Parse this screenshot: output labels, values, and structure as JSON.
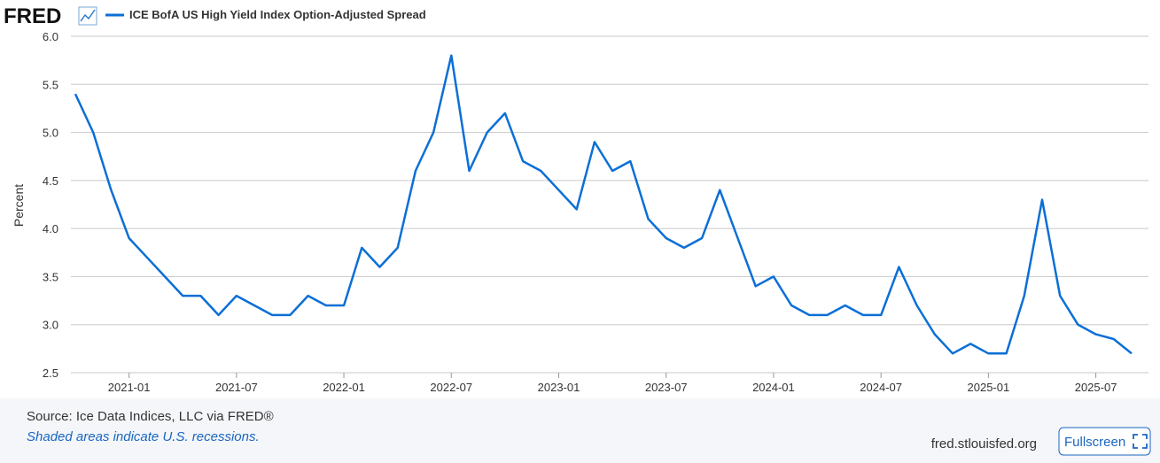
{
  "chart_data": {
    "type": "line",
    "logo": "FRED",
    "ylabel": "Percent",
    "source": "Source: Ice Data Indices, LLC via FRED®",
    "note": "Shaded areas indicate U.S. recessions.",
    "site": "fred.stlouisfed.org",
    "button": "Fullscreen",
    "grid": true,
    "x": [
      "2020-10",
      "2020-11",
      "2020-12",
      "2021-01",
      "2021-02",
      "2021-03",
      "2021-04",
      "2021-05",
      "2021-06",
      "2021-07",
      "2021-08",
      "2021-09",
      "2021-10",
      "2021-11",
      "2021-12",
      "2022-01",
      "2022-02",
      "2022-03",
      "2022-04",
      "2022-05",
      "2022-06",
      "2022-07",
      "2022-08",
      "2022-09",
      "2022-10",
      "2022-11",
      "2022-12",
      "2023-01",
      "2023-02",
      "2023-03",
      "2023-04",
      "2023-05",
      "2023-06",
      "2023-07",
      "2023-08",
      "2023-09",
      "2023-10",
      "2023-11",
      "2023-12",
      "2024-01",
      "2024-02",
      "2024-03",
      "2024-04",
      "2024-05",
      "2024-06",
      "2024-07",
      "2024-08",
      "2024-09",
      "2024-10",
      "2024-11",
      "2024-12",
      "2025-01",
      "2025-02",
      "2025-03",
      "2025-04",
      "2025-05",
      "2025-06",
      "2025-07",
      "2025-08",
      "2025-09"
    ],
    "series": [
      {
        "name": "ICE BofA US High Yield Index Option-Adjusted Spread",
        "color": "#0b6fd6",
        "values": [
          5.4,
          5.0,
          4.4,
          3.9,
          3.7,
          3.5,
          3.3,
          3.3,
          3.1,
          3.3,
          3.2,
          3.1,
          3.1,
          3.3,
          3.2,
          3.2,
          3.8,
          3.6,
          3.8,
          4.6,
          5.0,
          5.8,
          4.6,
          5.0,
          5.2,
          4.7,
          4.6,
          4.4,
          4.2,
          4.9,
          4.6,
          4.7,
          4.1,
          3.9,
          3.8,
          3.9,
          4.4,
          3.9,
          3.4,
          3.5,
          3.2,
          3.1,
          3.1,
          3.2,
          3.1,
          3.1,
          3.6,
          3.2,
          2.9,
          2.7,
          2.8,
          2.7,
          2.7,
          3.3,
          4.3,
          3.3,
          3.0,
          2.9,
          2.85,
          2.7
        ]
      }
    ],
    "xlim": [
      "2020-10",
      "2025-09"
    ],
    "xticks": [
      "2021-01",
      "2021-07",
      "2022-01",
      "2022-07",
      "2023-01",
      "2023-07",
      "2024-01",
      "2024-07",
      "2025-01",
      "2025-07"
    ],
    "ylim": [
      2.5,
      6.0
    ],
    "yticks": [
      2.5,
      {
        "value": 3,
        "label": "3.0"
      },
      3.5,
      {
        "value": 4,
        "label": "4.0"
      },
      4.5,
      {
        "value": 5,
        "label": "5.0"
      },
      5.5,
      {
        "value": 6,
        "label": "6.0"
      }
    ]
  }
}
